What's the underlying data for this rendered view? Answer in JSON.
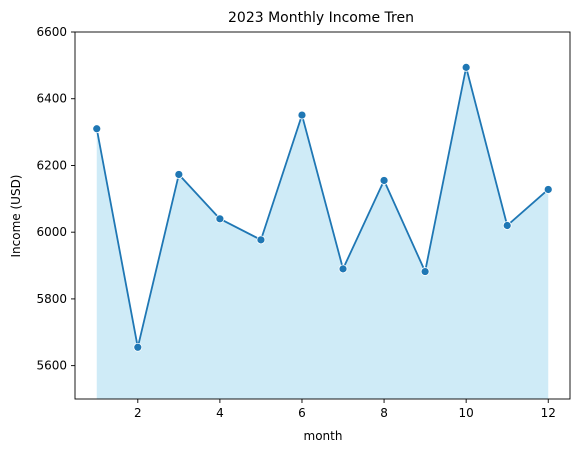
{
  "chart_data": {
    "type": "area",
    "title": "2023 Monthly Income Tren",
    "xlabel": "month",
    "ylabel": "Income (USD)",
    "x": [
      1,
      2,
      3,
      4,
      5,
      6,
      7,
      8,
      9,
      10,
      11,
      12
    ],
    "series": [
      {
        "values": [
          6310,
          5655,
          6173,
          6040,
          5977,
          6351,
          5890,
          6155,
          5882,
          6494,
          6020,
          6128
        ]
      }
    ],
    "xlim": [
      0.47,
      12.53
    ],
    "ylim": [
      5500,
      6600
    ],
    "xticks": [
      2,
      4,
      6,
      8,
      10,
      12
    ],
    "yticks": [
      5600,
      5800,
      6000,
      6200,
      6400,
      6600
    ],
    "grid": false,
    "legend": "none",
    "colors": {
      "line": "#1f77b4",
      "fill": "#87ceeb",
      "marker_edge": "#ffffff"
    }
  }
}
